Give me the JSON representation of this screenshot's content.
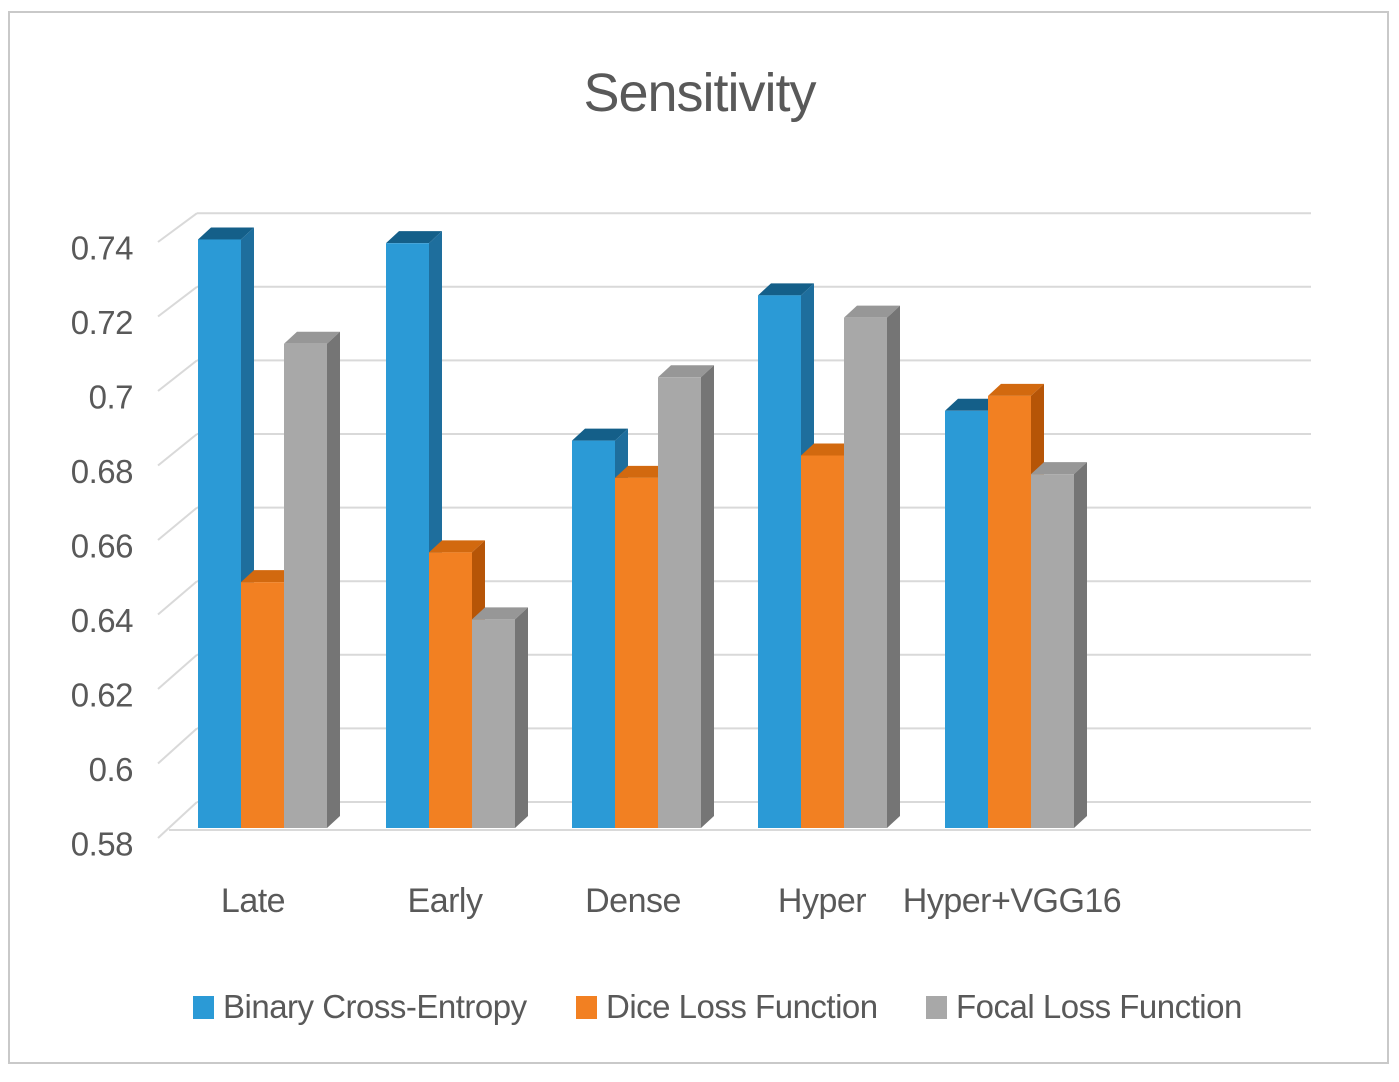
{
  "title": "Sensitivity",
  "colors": {
    "text": "#595959",
    "gridline": "#d9d9d9",
    "border": "#c9c9c9",
    "background": "#ffffff"
  },
  "chart_data": {
    "type": "bar",
    "style": "3d-clustered-column",
    "title": "Sensitivity",
    "categories": [
      "Late",
      "Early",
      "Dense",
      "Hyper",
      "Hyper+VGG16"
    ],
    "series": [
      {
        "name": "Binary Cross-Entropy",
        "color": "#2b9ad6",
        "color_top": "#145f89",
        "color_side": "#1e6e9d",
        "values": [
          0.738,
          0.737,
          0.684,
          0.723,
          0.692
        ]
      },
      {
        "name": "Dice Loss Function",
        "color": "#f28022",
        "color_top": "#d2690f",
        "color_side": "#b65507",
        "values": [
          0.646,
          0.654,
          0.674,
          0.68,
          0.696
        ]
      },
      {
        "name": "Focal Loss Function",
        "color": "#a8a8a8",
        "color_top": "#979797",
        "color_side": "#757575",
        "values": [
          0.71,
          0.636,
          0.701,
          0.717,
          0.675
        ]
      }
    ],
    "ylim": [
      0.58,
      0.74
    ],
    "ytick_step": 0.02,
    "ytick_labels": [
      "0.74",
      "0.72",
      "0.7",
      "0.68",
      "0.66",
      "0.64",
      "0.62",
      "0.6",
      "0.58"
    ],
    "grid": true,
    "legend_position": "bottom"
  }
}
